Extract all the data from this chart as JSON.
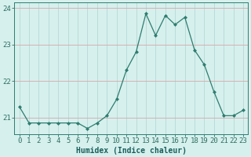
{
  "x": [
    0,
    1,
    2,
    3,
    4,
    5,
    6,
    7,
    8,
    9,
    10,
    11,
    12,
    13,
    14,
    15,
    16,
    17,
    18,
    19,
    20,
    21,
    22,
    23
  ],
  "y": [
    21.3,
    20.85,
    20.85,
    20.85,
    20.85,
    20.85,
    20.85,
    20.7,
    20.85,
    21.05,
    21.5,
    22.3,
    22.8,
    23.85,
    23.25,
    23.8,
    23.55,
    23.75,
    22.85,
    22.45,
    21.7,
    21.05,
    21.05,
    21.2
  ],
  "line_color": "#2e7d6e",
  "marker": "D",
  "marker_size": 2.0,
  "bg_color": "#d6f0ee",
  "hgrid_color": "#d4a8a8",
  "vgrid_color": "#b8d8d4",
  "xlabel": "Humidex (Indice chaleur)",
  "ylim": [
    20.55,
    24.15
  ],
  "yticks": [
    21,
    22,
    23,
    24
  ],
  "xlim": [
    -0.5,
    23.5
  ],
  "axis_color": "#2e7d6e",
  "tick_color": "#2e6e60",
  "label_color": "#1a5f5a",
  "tick_fontsize": 6.5,
  "xlabel_fontsize": 7.0
}
